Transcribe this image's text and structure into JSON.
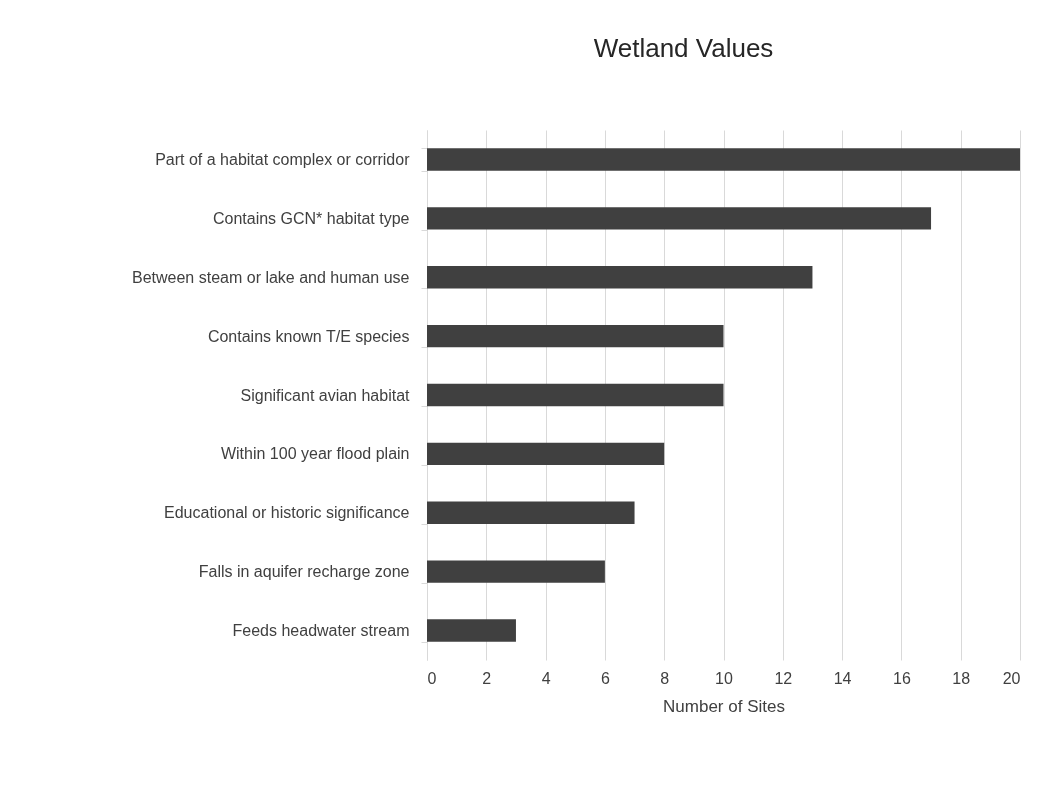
{
  "chart_data": {
    "type": "bar",
    "orientation": "horizontal",
    "title": "Wetland Values",
    "xlabel": "Number of Sites",
    "categories": [
      "Part of a habitat complex or corridor",
      "Contains GCN* habitat type",
      "Between steam or lake and human use",
      "Contains known T/E species",
      "Significant avian habitat",
      "Within 100 year flood plain",
      "Educational or historic significance",
      "Falls in aquifer recharge zone",
      "Feeds headwater stream"
    ],
    "values": [
      20,
      17,
      13,
      10,
      10,
      8,
      7,
      6,
      3
    ],
    "color": "#404040",
    "xlim": [
      0,
      20
    ],
    "xticks": [
      0,
      2,
      4,
      6,
      8,
      10,
      12,
      14,
      16,
      18,
      20
    ],
    "grid": "x"
  }
}
